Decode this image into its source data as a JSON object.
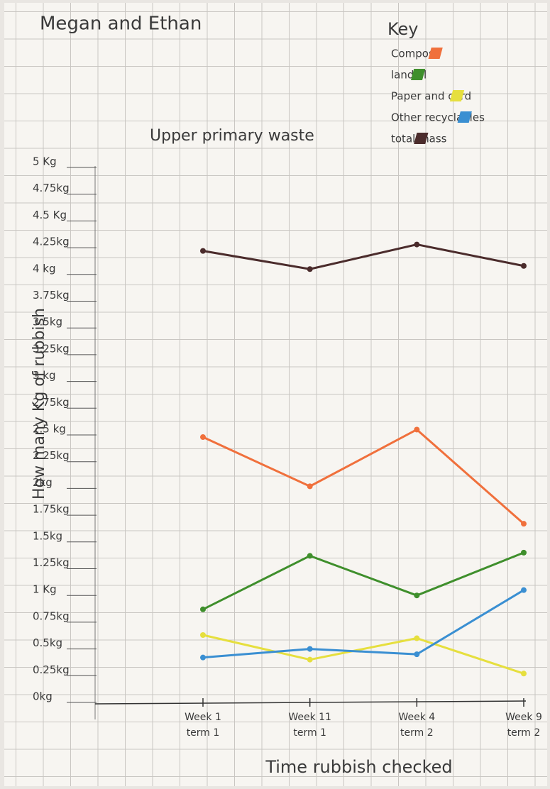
{
  "chart_data": {
    "type": "line",
    "author": "Megan and Ethan",
    "title": "Upper primary waste",
    "legend_title": "Key",
    "y_label": "How many Kg of rubbish",
    "x_label": "Time rubbish checked",
    "categories": [
      "Week 1 term 1",
      "Week 11 term 1",
      "Week 4 term 2",
      "Week 9 term 2"
    ],
    "series": [
      {
        "name": "Compost",
        "color": "#f0703c",
        "values": [
          2.48,
          2.02,
          2.55,
          1.67
        ]
      },
      {
        "name": "landfill",
        "color": "#3f8f2c",
        "values": [
          0.87,
          1.37,
          1.0,
          1.4
        ]
      },
      {
        "name": "Paper and card",
        "color": "#e6df3e",
        "values": [
          0.63,
          0.4,
          0.6,
          0.27
        ]
      },
      {
        "name": "Other recyclables",
        "color": "#3a8fd2",
        "values": [
          0.42,
          0.5,
          0.45,
          1.05
        ]
      },
      {
        "name": "total mass",
        "color": "#4b2c2c",
        "values": [
          4.22,
          4.05,
          4.28,
          4.08
        ]
      }
    ],
    "ylim": [
      0,
      5
    ],
    "yticks": [
      {
        "value": 0,
        "label": "0kg"
      },
      {
        "value": 0.25,
        "label": "0.25kg"
      },
      {
        "value": 0.5,
        "label": "0.5kg"
      },
      {
        "value": 0.75,
        "label": "0.75kg"
      },
      {
        "value": 1,
        "label": "1 Kg"
      },
      {
        "value": 1.25,
        "label": "1.25kg"
      },
      {
        "value": 1.5,
        "label": "1.5kg"
      },
      {
        "value": 1.75,
        "label": "1.75kg"
      },
      {
        "value": 2,
        "label": "2kg"
      },
      {
        "value": 2.25,
        "label": "2.25kg"
      },
      {
        "value": 2.5,
        "label": "2.5 kg"
      },
      {
        "value": 2.75,
        "label": "2.75kg"
      },
      {
        "value": 3,
        "label": "3 kg"
      },
      {
        "value": 3.25,
        "label": "3.25kg"
      },
      {
        "value": 3.5,
        "label": "3.5kg"
      },
      {
        "value": 3.75,
        "label": "3.75kg"
      },
      {
        "value": 4,
        "label": "4 kg"
      },
      {
        "value": 4.25,
        "label": "4.25kg"
      },
      {
        "value": 4.5,
        "label": "4.5 Kg"
      },
      {
        "value": 4.75,
        "label": "4.75kg"
      },
      {
        "value": 5,
        "label": "5 Kg"
      }
    ]
  }
}
